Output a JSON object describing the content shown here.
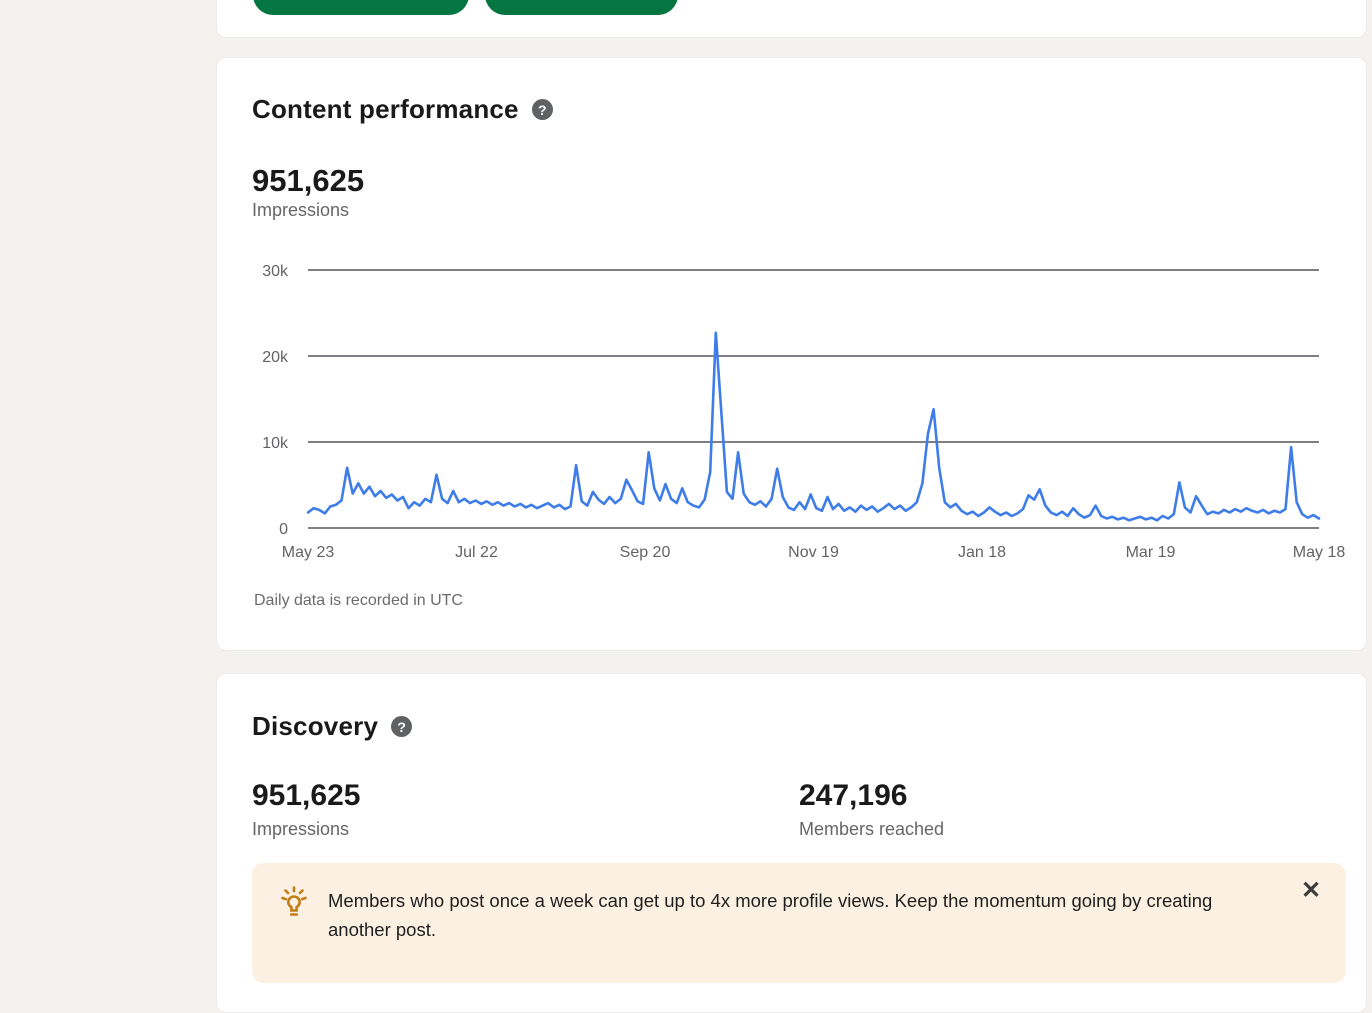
{
  "colors": {
    "page_background": "#f3f2ef",
    "card_background": "#ffffff",
    "action_button_green": "#057642",
    "chart_line_blue": "#3e7de8",
    "gridline_gray": "#55565a",
    "tip_banner_background": "#fbf0e1",
    "lightbulb_orange": "#c37d16"
  },
  "icons": {
    "help_glyph": "?",
    "close_glyph": "✕"
  },
  "content_performance": {
    "title": "Content performance",
    "metric_value": "951,625",
    "metric_label": "Impressions"
  },
  "chart_data": {
    "type": "line",
    "title": "Content performance — Impressions (daily)",
    "ylabel": "Impressions",
    "ylim": [
      0,
      30000
    ],
    "grid": "horizontal",
    "legend": "none",
    "y_ticks": [
      {
        "label": "0",
        "value": 0
      },
      {
        "label": "10k",
        "value": 10000
      },
      {
        "label": "20k",
        "value": 20000
      },
      {
        "label": "30k",
        "value": 30000
      }
    ],
    "x_ticks": [
      "May 23",
      "Jul 22",
      "Sep 20",
      "Nov 19",
      "Jan 18",
      "Mar 19",
      "May 18"
    ],
    "footnote": "Daily data is recorded in UTC",
    "values_unit": "thousands of impressions, sampled every 2 days May 23 to May 18",
    "values_k": [
      1.8,
      2.3,
      2.1,
      1.7,
      2.5,
      2.7,
      3.2,
      7.0,
      4.0,
      5.2,
      4.0,
      4.8,
      3.7,
      4.3,
      3.5,
      3.9,
      3.2,
      3.6,
      2.3,
      3.0,
      2.6,
      3.4,
      3.0,
      6.2,
      3.4,
      2.9,
      4.3,
      3.0,
      3.4,
      2.9,
      3.2,
      2.8,
      3.1,
      2.7,
      3.0,
      2.6,
      2.9,
      2.5,
      2.8,
      2.4,
      2.7,
      2.3,
      2.6,
      2.9,
      2.4,
      2.7,
      2.2,
      2.5,
      7.3,
      3.1,
      2.6,
      4.2,
      3.3,
      2.8,
      3.6,
      2.9,
      3.4,
      5.6,
      4.4,
      3.1,
      2.8,
      8.8,
      4.6,
      3.2,
      5.1,
      3.4,
      2.9,
      4.6,
      3.0,
      2.6,
      2.4,
      3.3,
      6.5,
      22.7,
      13.5,
      4.2,
      3.4,
      8.8,
      4.0,
      3.0,
      2.7,
      3.1,
      2.5,
      3.4,
      6.9,
      3.6,
      2.4,
      2.1,
      3.0,
      2.2,
      3.9,
      2.3,
      2.0,
      3.6,
      2.2,
      2.8,
      2.0,
      2.4,
      1.9,
      2.6,
      2.1,
      2.5,
      1.9,
      2.3,
      2.8,
      2.2,
      2.6,
      2.0,
      2.4,
      3.0,
      5.2,
      11.0,
      13.8,
      7.0,
      3.0,
      2.4,
      2.8,
      2.0,
      1.6,
      1.9,
      1.4,
      1.8,
      2.4,
      1.9,
      1.5,
      1.8,
      1.4,
      1.7,
      2.2,
      3.8,
      3.3,
      4.5,
      2.6,
      1.8,
      1.5,
      1.9,
      1.4,
      2.3,
      1.6,
      1.2,
      1.5,
      2.6,
      1.4,
      1.1,
      1.3,
      1.0,
      1.2,
      0.9,
      1.1,
      1.3,
      1.0,
      1.2,
      0.9,
      1.4,
      1.1,
      1.6,
      5.3,
      2.4,
      1.8,
      3.7,
      2.6,
      1.6,
      1.9,
      1.7,
      2.1,
      1.8,
      2.2,
      1.9,
      2.3,
      2.0,
      1.8,
      2.1,
      1.7,
      2.0,
      1.8,
      2.2,
      9.4,
      3.0,
      1.6,
      1.2,
      1.5,
      1.1
    ]
  },
  "discovery": {
    "title": "Discovery",
    "stats": [
      {
        "value": "951,625",
        "label": "Impressions"
      },
      {
        "value": "247,196",
        "label": "Members reached"
      }
    ],
    "tip_text": "Members who post once a week can get up to 4x more profile views. Keep the momentum going by creating another post."
  }
}
